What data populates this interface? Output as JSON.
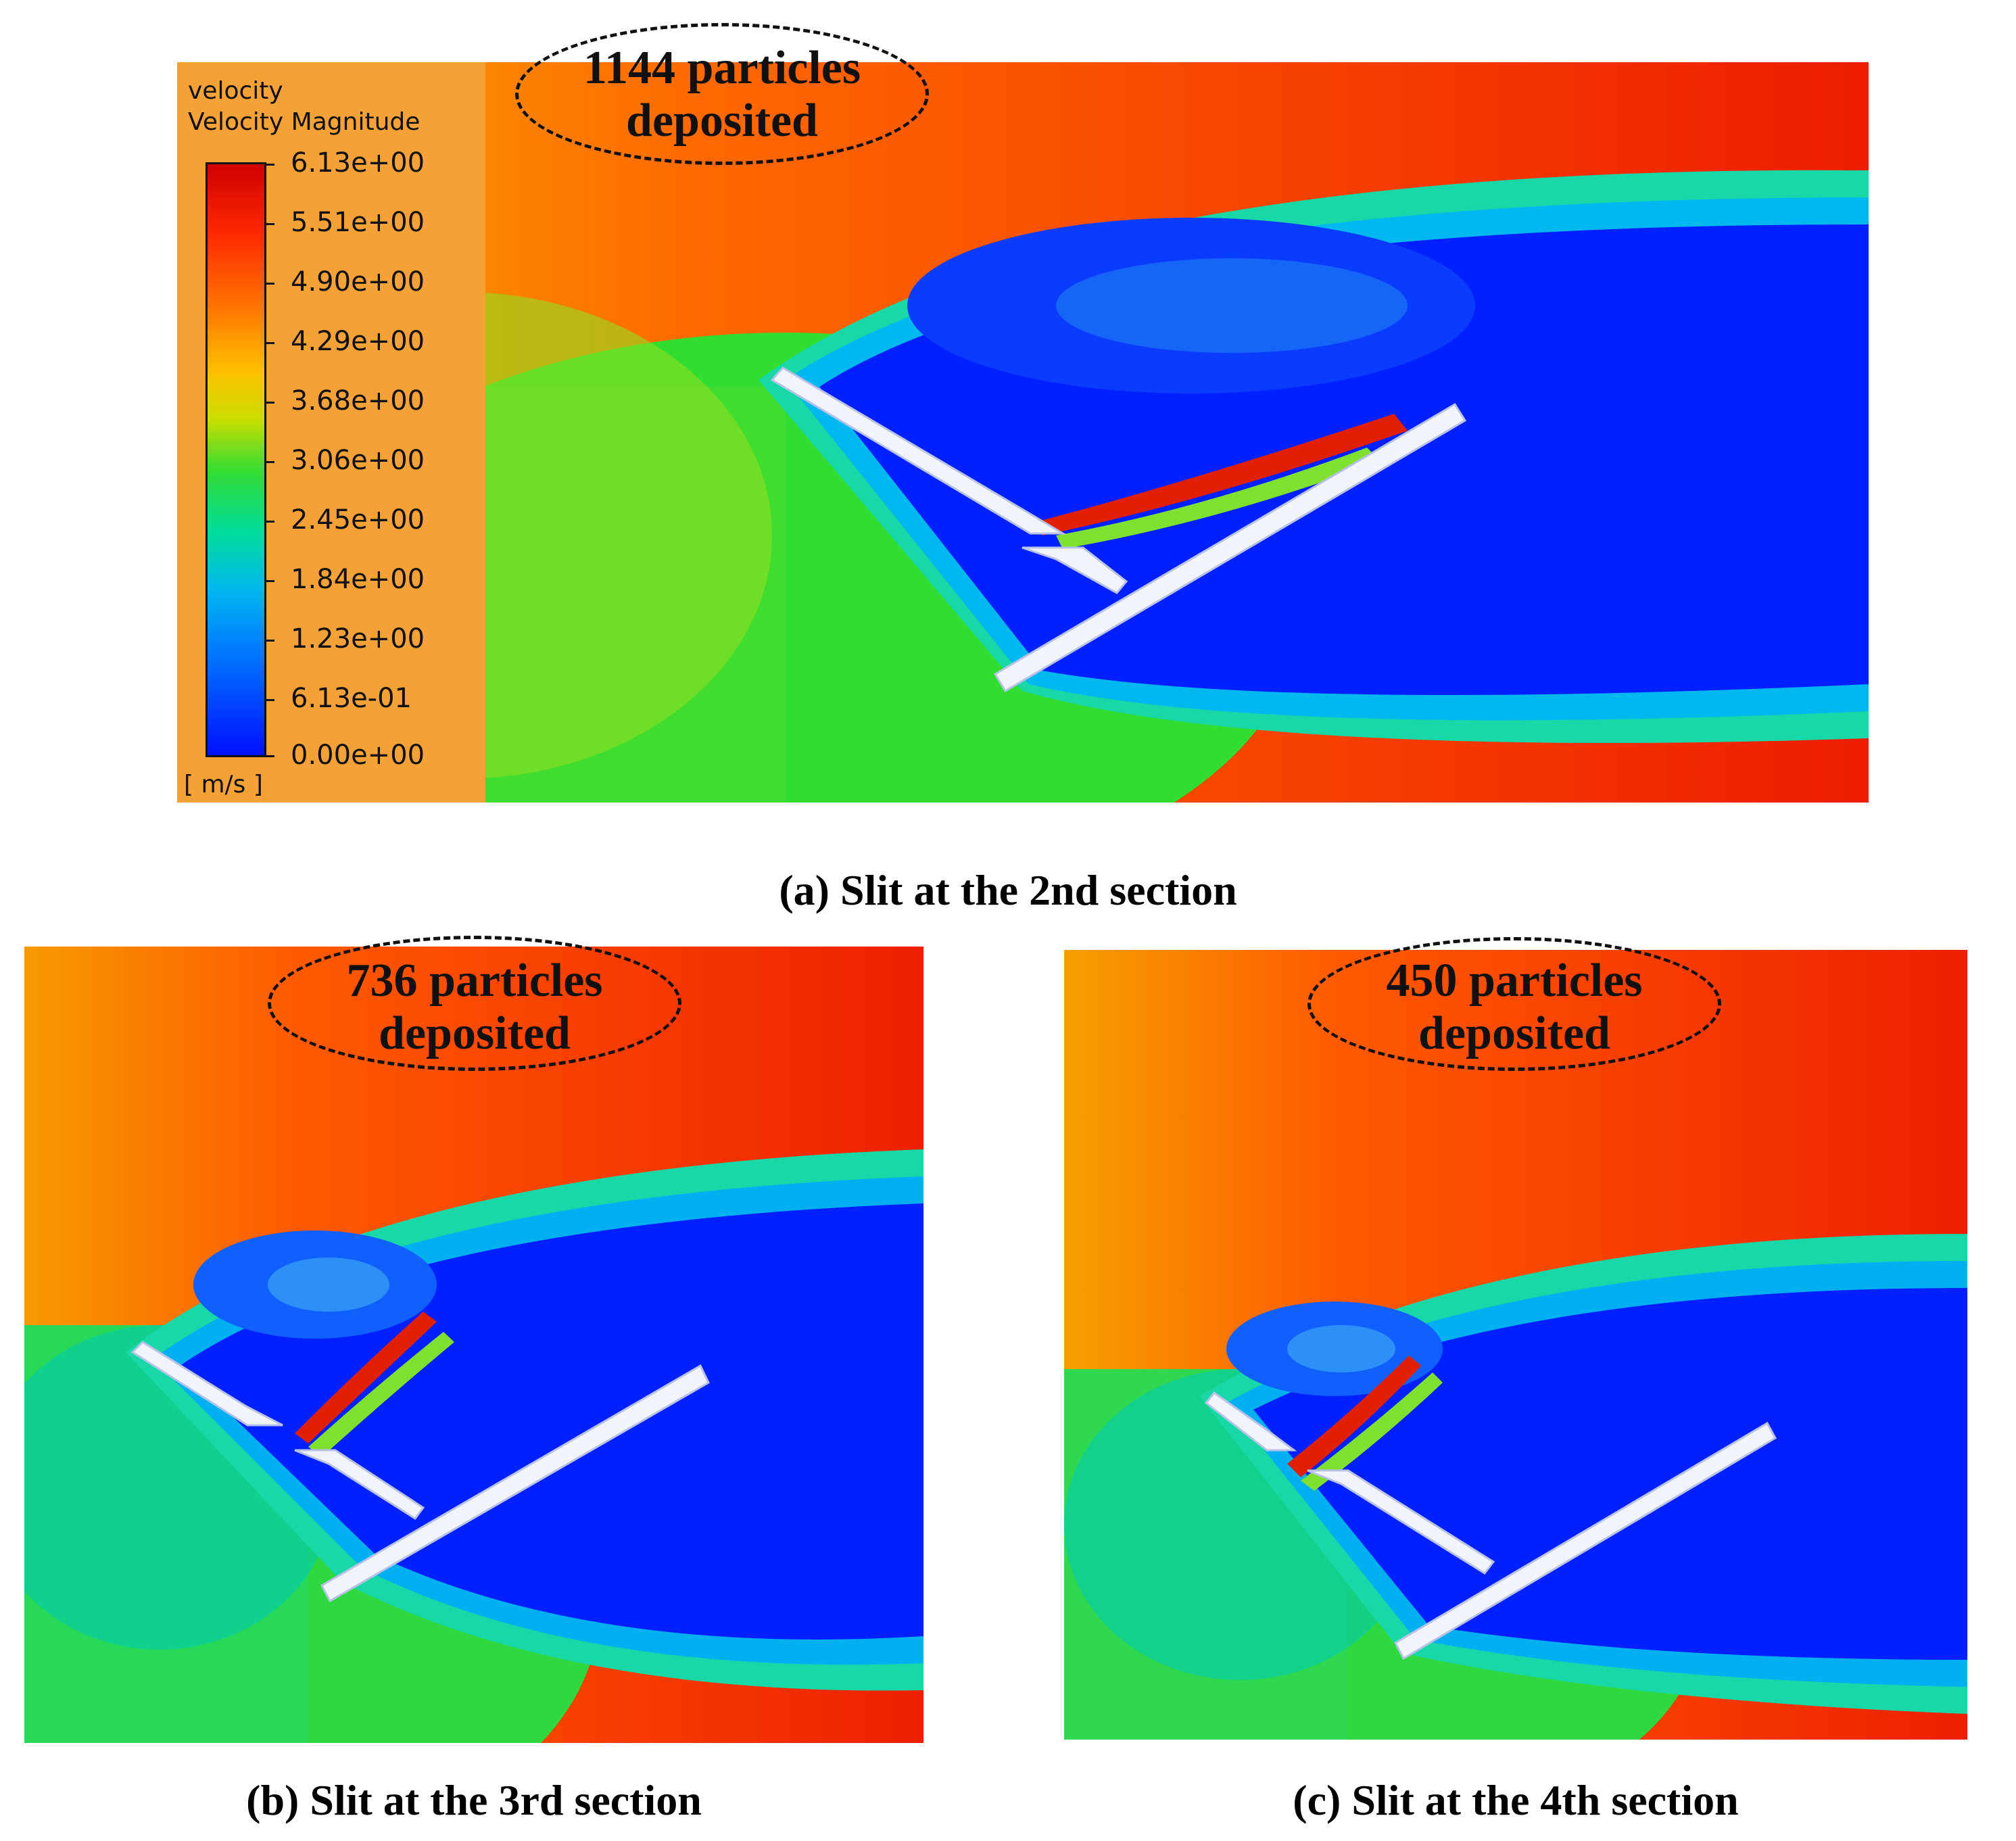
{
  "figure": {
    "panels": [
      {
        "id": "a",
        "caption": "(a) Slit at the 2nd section",
        "callout_line1": "1144 particles",
        "callout_line2": "deposited"
      },
      {
        "id": "b",
        "caption": "(b) Slit at the 3rd section",
        "callout_line1": "736 particles",
        "callout_line2": "deposited"
      },
      {
        "id": "c",
        "caption": "(c) Slit at the 4th section",
        "callout_line1": "450 particles",
        "callout_line2": "deposited"
      }
    ],
    "legend": {
      "title_line1": "velocity",
      "title_line2": "Velocity Magnitude",
      "units": "[ m/s ]",
      "ticks": [
        "6.13e+00",
        "5.51e+00",
        "4.90e+00",
        "4.29e+00",
        "3.68e+00",
        "3.06e+00",
        "2.45e+00",
        "1.84e+00",
        "1.23e+00",
        "6.13e-01",
        "0.00e+00"
      ]
    },
    "colors": {
      "high": "#e00000",
      "mid_high": "#ff8c00",
      "mid": "#22dd22",
      "mid_low": "#00c0e0",
      "low": "#0010ff",
      "legend_bg": "#f4a238"
    }
  }
}
